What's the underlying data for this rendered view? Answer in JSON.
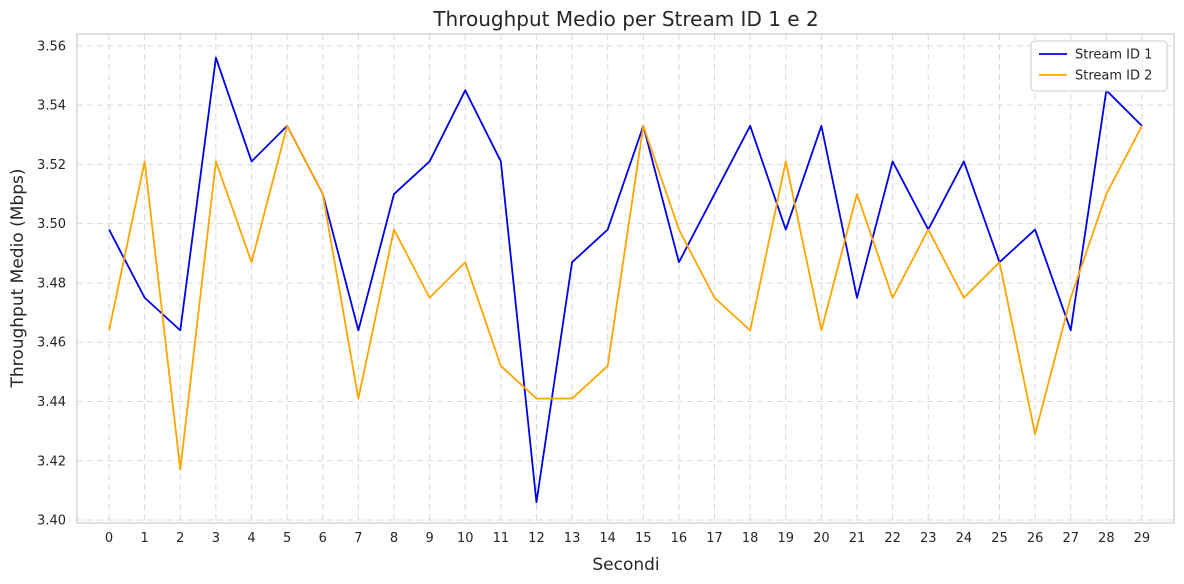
{
  "chart_data": {
    "type": "line",
    "title": "Throughput Medio per Stream ID 1 e 2",
    "xlabel": "Secondi",
    "ylabel": "Throughput Medio (Mbps)",
    "x": [
      0,
      1,
      2,
      3,
      4,
      5,
      6,
      7,
      8,
      9,
      10,
      11,
      12,
      13,
      14,
      15,
      16,
      17,
      18,
      19,
      20,
      21,
      22,
      23,
      24,
      25,
      26,
      27,
      28,
      29
    ],
    "xlim": [
      -0.9,
      29.9
    ],
    "ylim": [
      3.399,
      3.564
    ],
    "yticks": [
      3.4,
      3.42,
      3.44,
      3.46,
      3.48,
      3.5,
      3.52,
      3.54,
      3.56
    ],
    "grid": true,
    "legend_position": "top-right",
    "series": [
      {
        "name": "Stream ID 1",
        "color": "#0000ee",
        "values": [
          3.498,
          3.475,
          3.464,
          3.556,
          3.521,
          3.533,
          3.51,
          3.464,
          3.51,
          3.521,
          3.545,
          3.521,
          3.406,
          3.487,
          3.498,
          3.533,
          3.487,
          3.51,
          3.533,
          3.498,
          3.533,
          3.475,
          3.521,
          3.498,
          3.521,
          3.487,
          3.498,
          3.464,
          3.545,
          3.533
        ]
      },
      {
        "name": "Stream ID 2",
        "color": "#ffa500",
        "values": [
          3.464,
          3.521,
          3.417,
          3.521,
          3.487,
          3.533,
          3.51,
          3.441,
          3.498,
          3.475,
          3.487,
          3.452,
          3.441,
          3.441,
          3.452,
          3.533,
          3.498,
          3.475,
          3.464,
          3.521,
          3.464,
          3.51,
          3.475,
          3.498,
          3.475,
          3.487,
          3.429,
          3.475,
          3.51,
          3.533
        ]
      }
    ]
  }
}
